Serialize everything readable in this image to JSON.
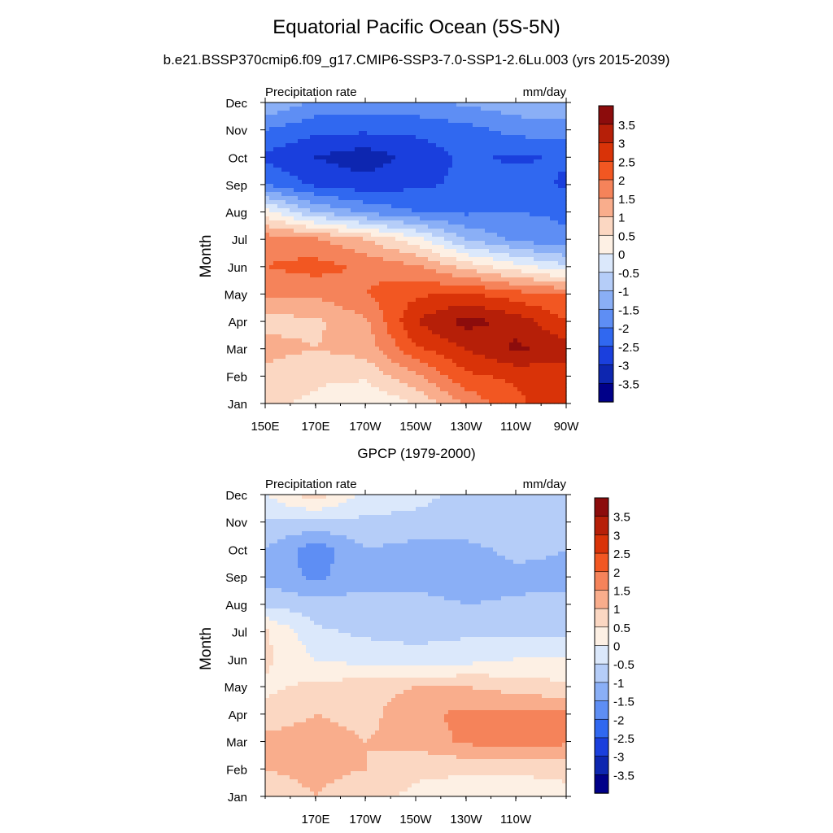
{
  "figure": {
    "title": "Equatorial Pacific Ocean (5S-5N)",
    "subtitle": "b.e21.BSSP370cmip6.f09_g17.CMIP6-SSP3-7.0-SSP1-2.6Lu.003 (yrs 2015-2039)"
  },
  "chart_data": [
    {
      "type": "heatmap",
      "title": "",
      "left_label": "Precipitation rate",
      "right_label": "mm/day",
      "ylabel": "Month",
      "xlabel": "",
      "x_ticks": [
        "150E",
        "170E",
        "170W",
        "150W",
        "130W",
        "110W",
        "90W"
      ],
      "y_ticks": [
        "Jan",
        "Feb",
        "Mar",
        "Apr",
        "May",
        "Jun",
        "Jul",
        "Aug",
        "Sep",
        "Oct",
        "Nov",
        "Dec"
      ],
      "x_range": [
        "150E",
        "90W"
      ],
      "colorbar_labels": [
        "3.5",
        "3",
        "2.5",
        "2",
        "1.5",
        "1",
        "0.5",
        "0",
        "-0.5",
        "-1",
        "-1.5",
        "-2",
        "-2.5",
        "-3",
        "-3.5"
      ],
      "colorbar_colors": [
        "#8c0c0c",
        "#b61f08",
        "#d93308",
        "#f25722",
        "#f5835a",
        "#f9ad8c",
        "#fbd7c2",
        "#fdf0e4",
        "#dbe8fb",
        "#b5cdf8",
        "#8aaff6",
        "#5e8ef4",
        "#3068f0",
        "#1a3fdd",
        "#0d26b0",
        "#000089"
      ],
      "values": [
        [
          0.6,
          0.4,
          0.0,
          0.5,
          1.6,
          2.4,
          2.8
        ],
        [
          0.8,
          0.6,
          0.6,
          1.4,
          2.4,
          2.6,
          2.8
        ],
        [
          1.2,
          1.0,
          1.2,
          2.4,
          3.0,
          3.6,
          3.2
        ],
        [
          0.8,
          0.9,
          1.4,
          3.0,
          3.7,
          3.3,
          2.5
        ],
        [
          1.6,
          1.6,
          2.0,
          2.4,
          2.6,
          2.2,
          2.0
        ],
        [
          2.0,
          2.2,
          1.9,
          1.6,
          0.8,
          0.2,
          -0.4
        ],
        [
          1.8,
          1.6,
          1.0,
          0.2,
          -1.0,
          -1.6,
          -1.9
        ],
        [
          0.2,
          -1.0,
          -1.6,
          -2.0,
          -2.1,
          -2.0,
          -2.1
        ],
        [
          -2.0,
          -2.6,
          -2.8,
          -2.6,
          -2.4,
          -2.2,
          -2.6
        ],
        [
          -2.6,
          -3.0,
          -3.3,
          -2.8,
          -2.4,
          -2.6,
          -2.4
        ],
        [
          -2.0,
          -2.4,
          -2.4,
          -2.4,
          -2.2,
          -1.8,
          -1.8
        ],
        [
          -1.0,
          -1.6,
          -1.6,
          -1.6,
          -1.4,
          -1.2,
          -1.0
        ]
      ]
    },
    {
      "type": "heatmap",
      "title": "GPCP (1979-2000)",
      "left_label": "Precipitation rate",
      "right_label": "mm/day",
      "ylabel": "Month",
      "xlabel": "",
      "x_ticks": [
        "170E",
        "170W",
        "150W",
        "130W",
        "110W"
      ],
      "y_ticks": [
        "Jan",
        "Feb",
        "Mar",
        "Apr",
        "May",
        "Jun",
        "Jul",
        "Aug",
        "Sep",
        "Oct",
        "Nov",
        "Dec"
      ],
      "x_range": [
        "150E",
        "90W"
      ],
      "colorbar_labels": [
        "3.5",
        "3",
        "2.5",
        "2",
        "1.5",
        "1",
        "0.5",
        "0",
        "-0.5",
        "-1",
        "-1.5",
        "-2",
        "-2.5",
        "-3",
        "-3.5"
      ],
      "colorbar_colors": [
        "#8c0c0c",
        "#b61f08",
        "#d93308",
        "#f25722",
        "#f5835a",
        "#f9ad8c",
        "#fbd7c2",
        "#fdf0e4",
        "#dbe8fb",
        "#b5cdf8",
        "#8aaff6",
        "#5e8ef4",
        "#3068f0",
        "#1a3fdd",
        "#0d26b0",
        "#000089"
      ],
      "values": [
        [
          0.6,
          1.0,
          0.6,
          0.4,
          0.2,
          0.2,
          0.4
        ],
        [
          1.0,
          1.2,
          1.0,
          0.6,
          0.6,
          0.6,
          0.6
        ],
        [
          1.2,
          1.3,
          1.0,
          1.2,
          1.6,
          1.8,
          1.6
        ],
        [
          0.6,
          1.0,
          0.8,
          1.4,
          1.6,
          1.6,
          1.6
        ],
        [
          0.4,
          0.6,
          0.8,
          1.0,
          1.0,
          0.8,
          0.6
        ],
        [
          0.6,
          0.0,
          -0.2,
          -0.4,
          -0.2,
          0.0,
          0.0
        ],
        [
          0.6,
          -0.4,
          -0.6,
          -0.6,
          -0.6,
          -0.6,
          -0.6
        ],
        [
          -0.6,
          -0.8,
          -0.8,
          -0.8,
          -1.0,
          -0.9,
          -0.8
        ],
        [
          -1.2,
          -1.6,
          -1.2,
          -1.2,
          -1.4,
          -1.2,
          -1.2
        ],
        [
          -1.0,
          -1.8,
          -1.0,
          -1.2,
          -1.2,
          -0.8,
          -1.0
        ],
        [
          -0.6,
          -0.6,
          -0.6,
          -0.6,
          -0.6,
          -0.6,
          -0.6
        ],
        [
          0.0,
          0.8,
          -0.2,
          -0.4,
          -0.6,
          -0.6,
          -0.6
        ]
      ]
    }
  ]
}
